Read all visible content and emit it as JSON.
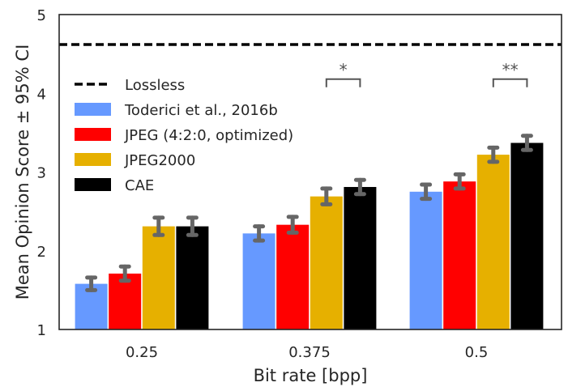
{
  "chart_data": {
    "type": "bar",
    "xlabel": "Bit rate [bpp]",
    "ylabel": "Mean Opinion Score ± 95% CI",
    "ylim": [
      1,
      5
    ],
    "yticks": [
      "1",
      "2",
      "3",
      "4",
      "5"
    ],
    "categories": [
      "0.25",
      "0.375",
      "0.5"
    ],
    "series": [
      {
        "name": "Toderici et al., 2016b",
        "color": "#6699ff",
        "values": [
          1.58,
          2.22,
          2.75
        ],
        "ci": [
          0.08,
          0.09,
          0.09
        ]
      },
      {
        "name": "JPEG (4:2:0, optimized)",
        "color": "#ff0000",
        "values": [
          1.71,
          2.33,
          2.88
        ],
        "ci": [
          0.09,
          0.1,
          0.09
        ]
      },
      {
        "name": "JPEG2000",
        "color": "#e6b000",
        "values": [
          2.31,
          2.69,
          3.22
        ],
        "ci": [
          0.11,
          0.1,
          0.09
        ]
      },
      {
        "name": "CAE",
        "color": "#000000",
        "values": [
          2.31,
          2.81,
          3.37
        ],
        "ci": [
          0.11,
          0.09,
          0.09
        ]
      }
    ],
    "reference_line": {
      "name": "Lossless",
      "value": 4.62,
      "style": "dashed",
      "color": "#000000"
    },
    "significance": [
      {
        "category": "0.375",
        "between": [
          "JPEG2000",
          "CAE"
        ],
        "label": "*",
        "level": 4.18
      },
      {
        "category": "0.5",
        "between": [
          "JPEG2000",
          "CAE"
        ],
        "label": "**",
        "level": 4.18
      }
    ],
    "legend_placement": "upper-left",
    "grid": false,
    "error_bar_color": "#666666"
  }
}
